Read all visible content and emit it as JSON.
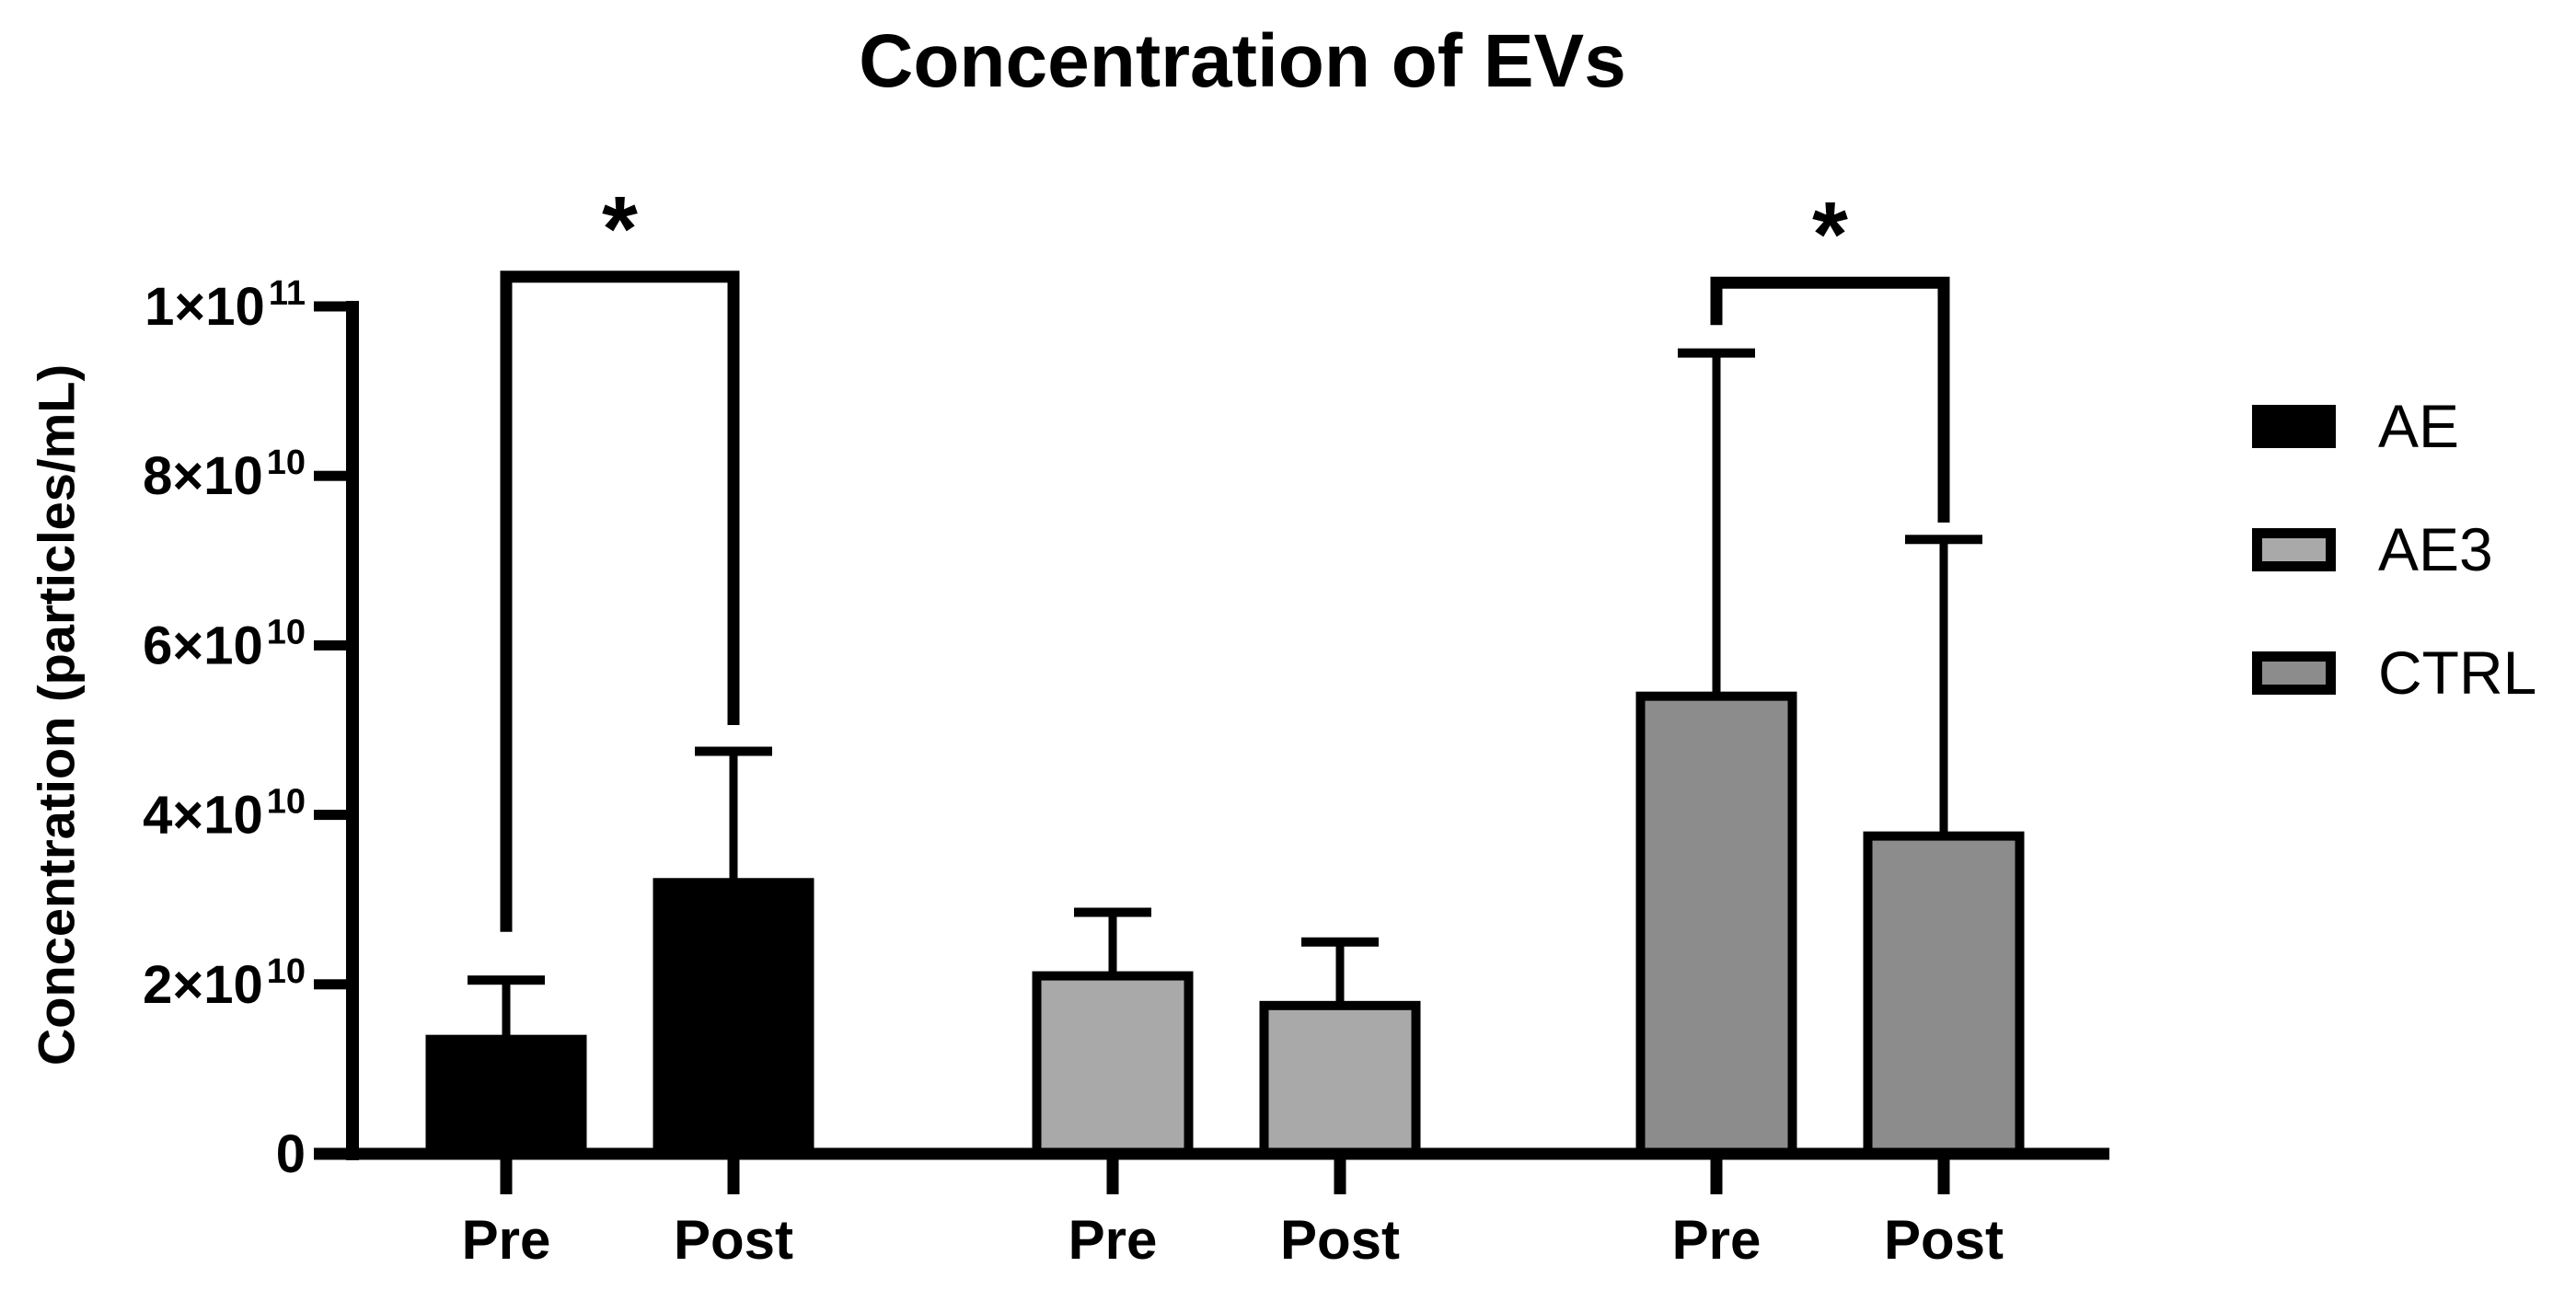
{
  "title": "Concentration of EVs",
  "y_axis": {
    "label": "Concentration (particles/mL)"
  },
  "legend": {
    "items": [
      {
        "label": "AE",
        "fill": "#000000"
      },
      {
        "label": "AE3",
        "fill": "#a9a9a9"
      },
      {
        "label": "CTRL",
        "fill": "#8c8c8c"
      }
    ]
  },
  "chart_data": {
    "type": "bar",
    "title": "Concentration of EVs",
    "ylabel": "Concentration (particles/mL)",
    "xlabel": "",
    "ylim": [
      0,
      100000000000.0
    ],
    "grid": false,
    "legend_position": "right",
    "yticks": [
      {
        "value": 0,
        "mantissa": "0",
        "exponent": ""
      },
      {
        "value": 20000000000.0,
        "mantissa": "2×10",
        "exponent": "10"
      },
      {
        "value": 40000000000.0,
        "mantissa": "4×10",
        "exponent": "10"
      },
      {
        "value": 60000000000.0,
        "mantissa": "6×10",
        "exponent": "10"
      },
      {
        "value": 80000000000.0,
        "mantissa": "8×10",
        "exponent": "10"
      },
      {
        "value": 100000000000.0,
        "mantissa": "1×10",
        "exponent": "11"
      }
    ],
    "categories": [
      "Pre",
      "Post"
    ],
    "series": [
      {
        "name": "AE",
        "fill": "#000000",
        "values": [
          13500000000.0,
          32000000000.0
        ],
        "error_top": [
          20500000000.0,
          47500000000.0
        ]
      },
      {
        "name": "AE3",
        "fill": "#a9a9a9",
        "values": [
          21000000000.0,
          17500000000.0
        ],
        "error_top": [
          28500000000.0,
          25000000000.0
        ]
      },
      {
        "name": "CTRL",
        "fill": "#8c8c8c",
        "values": [
          54000000000.0,
          37500000000.0
        ],
        "error_top": [
          94500000000.0,
          72500000000.0
        ]
      }
    ],
    "significance": [
      {
        "series": "AE",
        "from": "Pre",
        "to": "Post",
        "label": "*",
        "top_value": 103500000000.0,
        "left_drop_to": 26200000000.0,
        "right_drop_to": 50600000000.0
      },
      {
        "series": "CTRL",
        "from": "Pre",
        "to": "Post",
        "label": "*",
        "top_value": 102800000000.0,
        "left_drop_to": 97800000000.0,
        "right_drop_to": 74500000000.0
      }
    ]
  }
}
